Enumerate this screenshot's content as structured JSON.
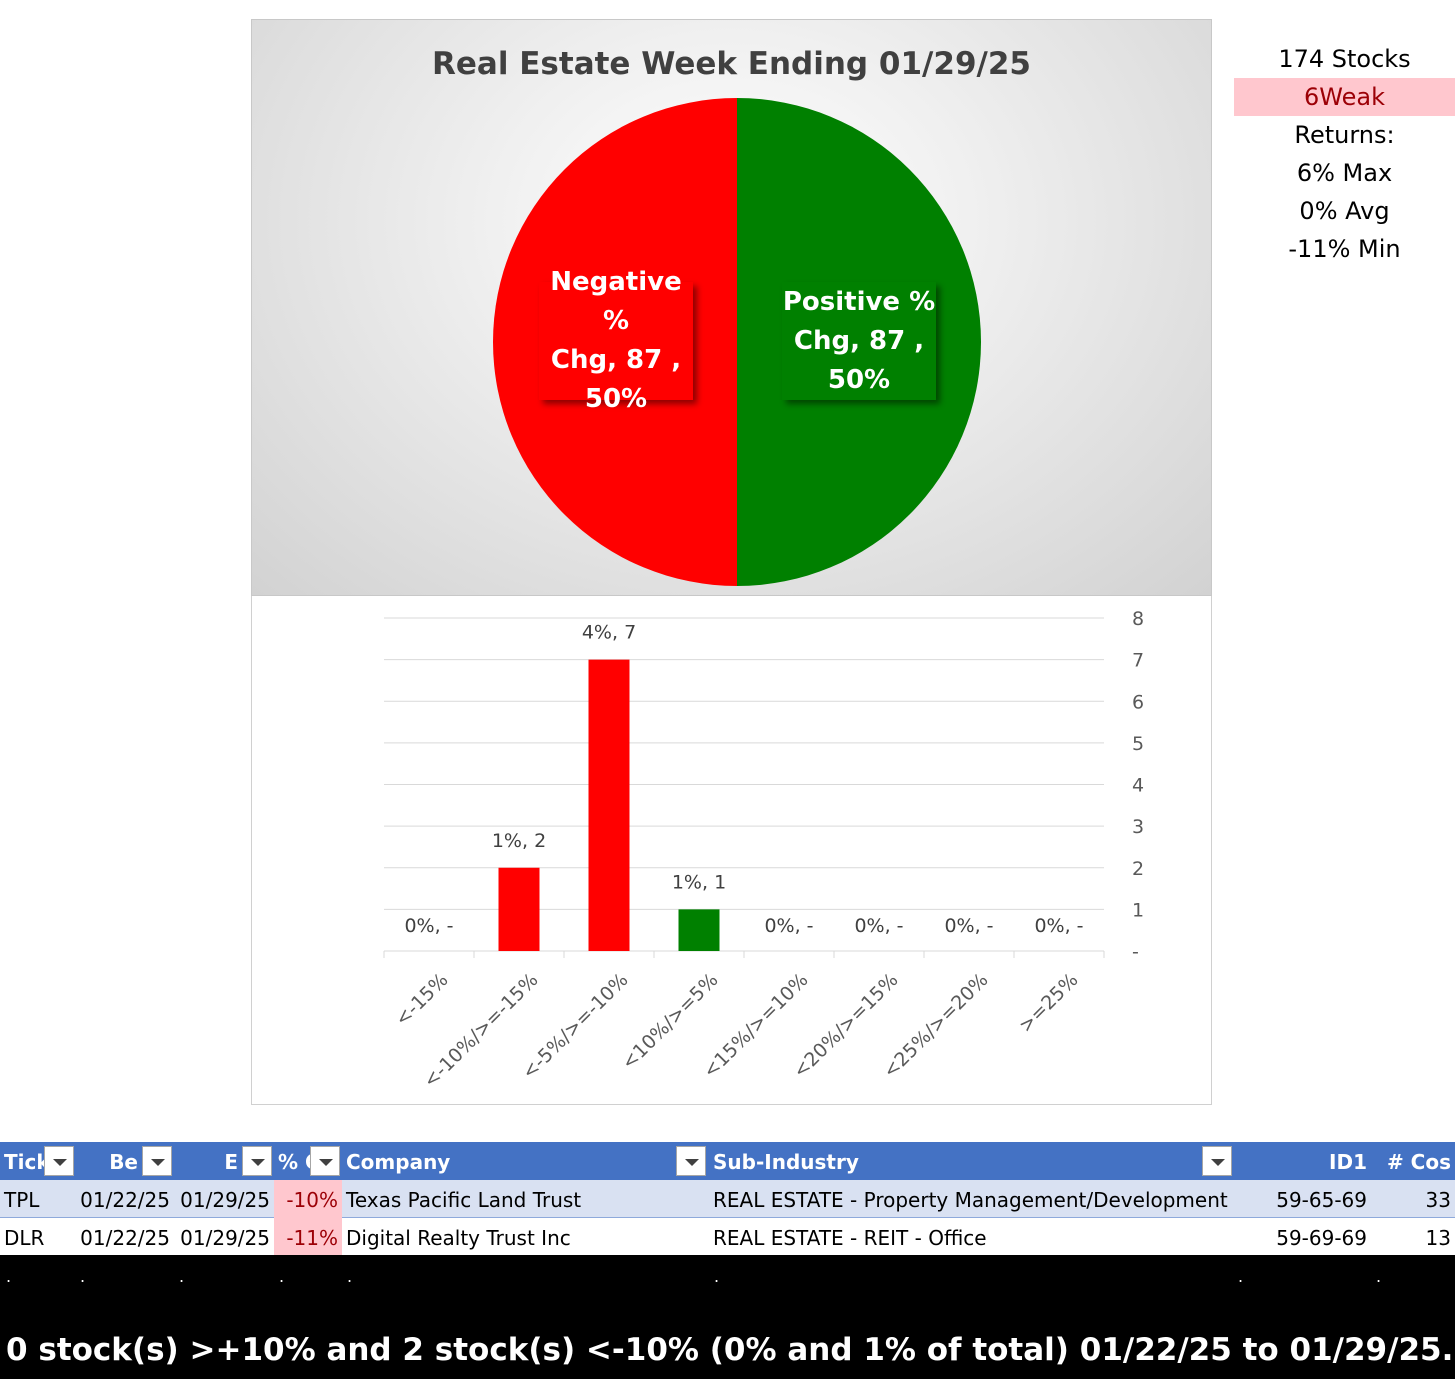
{
  "pie": {
    "title": "Real Estate Week Ending 01/29/25",
    "colors": {
      "negative": "#ff0000",
      "positive": "#008000"
    },
    "slices": [
      {
        "label_line1": "Negative %",
        "label_line2": "Chg,  87 ,",
        "label_line3": "50%",
        "count": 87,
        "percent": 50
      },
      {
        "label_line1": "Positive %",
        "label_line2": "Chg,  87 ,",
        "label_line3": "50%",
        "count": 87,
        "percent": 50
      }
    ]
  },
  "chart_data": [
    {
      "type": "pie",
      "title": "Real Estate Week Ending 01/29/25",
      "categories": [
        "Negative % Chg",
        "Positive % Chg"
      ],
      "values": [
        87,
        87
      ],
      "percents": [
        50,
        50
      ]
    },
    {
      "type": "bar",
      "title": "",
      "categories": [
        "<-15%",
        "<-10%/>=-15%",
        "<-5%/>=-10%",
        "<10%/>=5%",
        "<15%/>=10%",
        "<20%/>=15%",
        "<25%/>=20%",
        ">=25%"
      ],
      "values": [
        0,
        2,
        7,
        1,
        0,
        0,
        0,
        0
      ],
      "data_labels": [
        "0%,  -",
        "1%,  2",
        "4%,  7",
        "1%,  1",
        "0%,  -",
        "0%,  -",
        "0%,  -",
        "0%,  -"
      ],
      "bar_colors": [
        "#ff0000",
        "#ff0000",
        "#ff0000",
        "#008000",
        "#008000",
        "#008000",
        "#008000",
        "#008000"
      ],
      "ylim": [
        0,
        8
      ],
      "y_ticks": [
        "-",
        "1",
        "2",
        "3",
        "4",
        "5",
        "6",
        "7",
        "8"
      ],
      "y_axis_side": "right",
      "grid": true
    }
  ],
  "stats": {
    "stocks": "174 Stocks",
    "weak": "6Weak",
    "returns": "Returns:",
    "max": "6% Max",
    "avg": "0% Avg",
    "min": "-11% Min"
  },
  "table": {
    "headers": [
      "Tick",
      "Be",
      "E",
      "% C",
      "Company",
      "Sub-Industry",
      "ID1",
      "# Cos"
    ],
    "rows": [
      [
        "TPL",
        "01/22/25",
        "01/29/25",
        "-10%",
        "Texas Pacific Land Trust",
        "REAL ESTATE - Property Management/Development",
        "59-65-69",
        "33"
      ],
      [
        "DLR",
        "01/22/25",
        "01/29/25",
        "-11%",
        "Digital Realty Trust Inc",
        "REAL ESTATE - REIT - Office",
        "59-69-69",
        "13"
      ]
    ],
    "dots": [
      ".",
      ".",
      ".",
      ".",
      ".",
      ".",
      ".",
      "."
    ]
  },
  "footer": "0 stock(s) >+10% and 2 stock(s) <-10% (0% and 1% of total) 01/22/25 to 01/29/25."
}
